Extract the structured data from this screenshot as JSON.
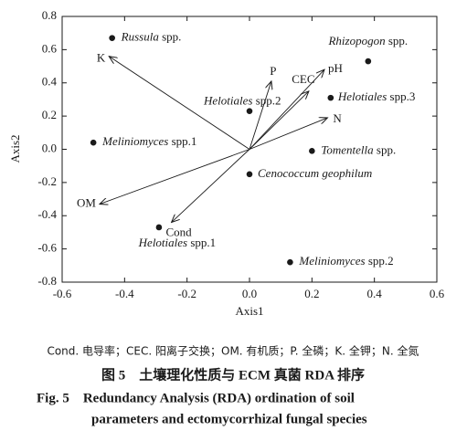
{
  "chart_data": {
    "type": "biplot",
    "x_label": "Axis1",
    "y_label": "Axis2",
    "xlim": [
      -0.6,
      0.6
    ],
    "ylim": [
      -0.8,
      0.8
    ],
    "xticks": [
      -0.6,
      -0.4,
      -0.2,
      {
        "value": 0,
        "label": "0.0"
      },
      0.2,
      0.4,
      0.6
    ],
    "yticks": [
      -0.8,
      -0.6,
      -0.4,
      -0.2,
      {
        "value": 0,
        "label": "0.0"
      },
      0.2,
      0.4,
      0.6,
      0.8
    ],
    "color": "#1a1a1a",
    "points": {
      "label_italic": [
        "Russula",
        "Rhizopogon",
        "Helotiales",
        "Helotiales",
        "Meliniomyces",
        "Tomentella",
        "Cenococcum geophilum",
        "Helotiales",
        "Meliniomyces"
      ],
      "label_rest": [
        "spp.",
        "spp.",
        "spp.2",
        "spp.3",
        "spp.1",
        "spp.",
        null,
        "spp.1",
        "spp.2"
      ],
      "x": [
        -0.44,
        0.38,
        0.0,
        0.26,
        -0.5,
        0.2,
        0.0,
        -0.29,
        0.13
      ],
      "y": [
        0.67,
        0.53,
        0.23,
        0.31,
        0.04,
        -0.01,
        -0.15,
        -0.47,
        -0.68
      ]
    },
    "vectors": {
      "labels": [
        "K",
        "P",
        "pH",
        "CEC",
        "N",
        "OM",
        "Cond"
      ],
      "x": [
        -0.45,
        0.07,
        0.24,
        0.19,
        0.25,
        -0.48,
        -0.25
      ],
      "y": [
        0.56,
        0.41,
        0.48,
        0.35,
        0.19,
        -0.33,
        -0.44
      ]
    }
  },
  "caption": {
    "abbreviations": "Cond. 电导率；CEC. 阳离子交换；OM. 有机质；P. 全磷；K. 全钾；N. 全氮",
    "title_cn": "图 5　土壤理化性质与 ECM 真菌 RDA 排序",
    "title_en_line1": "Fig. 5　Redundancy Analysis (RDA) ordination of soil",
    "title_en_line2": "parameters and ectomycorrhizal fungal species"
  }
}
